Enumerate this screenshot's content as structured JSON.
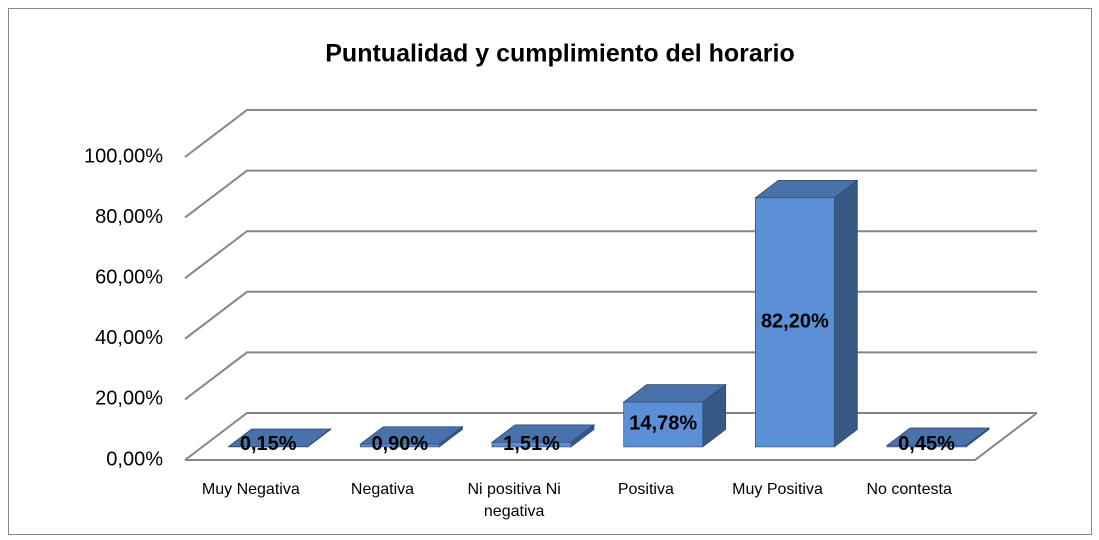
{
  "chart_data": {
    "type": "bar",
    "title": "Puntualidad y cumplimiento del horario",
    "categories": [
      "Muy Negativa",
      "Negativa",
      "Ni positiva Ni negativa",
      "Positiva",
      "Muy Positiva",
      "No contesta"
    ],
    "values": [
      0.15,
      0.9,
      1.51,
      14.78,
      82.2,
      0.45
    ],
    "value_labels": [
      "0,15%",
      "0,90%",
      "1,51%",
      "14,78%",
      "82,20%",
      "0,45%"
    ],
    "color": "#5b8fd6",
    "ylim": [
      0,
      100
    ],
    "yticks": [
      {
        "value": 0,
        "label": "0,00%"
      },
      {
        "value": 20,
        "label": "20,00%"
      },
      {
        "value": 40,
        "label": "40,00%"
      },
      {
        "value": 60,
        "label": "60,00%"
      },
      {
        "value": 80,
        "label": "80,00%"
      },
      {
        "value": 100,
        "label": "100,00%"
      }
    ],
    "grid": true
  }
}
